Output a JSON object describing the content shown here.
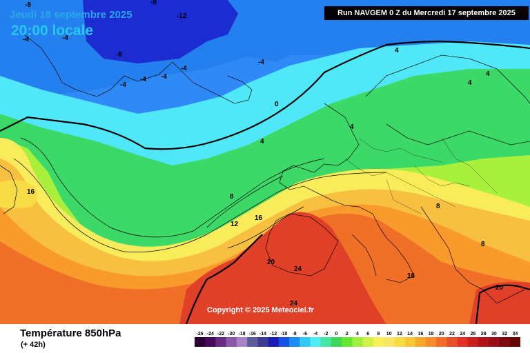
{
  "header": {
    "date": "Jeudi 18 septembre 2025",
    "time": "20:00 locale",
    "run": "Run NAVGEM 0 Z du Mercredi 17 septembre 2025"
  },
  "copyright": "Copyright © 2025 Meteociel.fr",
  "footer": {
    "title": "Température 850hPa",
    "subtitle": "(+ 42h)"
  },
  "scale": {
    "values": [
      "-26",
      "-24",
      "-22",
      "-20",
      "-18",
      "-16",
      "-14",
      "-12",
      "-10",
      "-8",
      "-6",
      "-4",
      "-2",
      "0",
      "2",
      "4",
      "6",
      "8",
      "10",
      "12",
      "14",
      "16",
      "18",
      "20",
      "22",
      "24",
      "26",
      "28",
      "30",
      "32",
      "34"
    ],
    "colors": [
      "#2b0030",
      "#4a0a5a",
      "#6a2a80",
      "#8a5aa8",
      "#a884c4",
      "#605c9c",
      "#3c3c94",
      "#1c1cb4",
      "#1450e6",
      "#1e8cf8",
      "#32c8f8",
      "#50ecf8",
      "#46e6a4",
      "#3cd858",
      "#64e632",
      "#9ef03c",
      "#d2f046",
      "#f8f05a",
      "#f8e664",
      "#f8dc46",
      "#f8c832",
      "#f8aa28",
      "#f88c28",
      "#f06e28",
      "#e85028",
      "#e03228",
      "#c81e1e",
      "#b01418",
      "#981016",
      "#7c0a10",
      "#620808"
    ]
  },
  "contour_labels": [
    "-8",
    "-8",
    "-12",
    "-8",
    "-4",
    "-4",
    "-4",
    "-4",
    "-4",
    "-4",
    "-4",
    "0",
    "4",
    "4",
    "4",
    "4",
    "4",
    "8",
    "8",
    "8",
    "12",
    "16",
    "16",
    "16",
    "20",
    "24",
    "24",
    "20"
  ]
}
